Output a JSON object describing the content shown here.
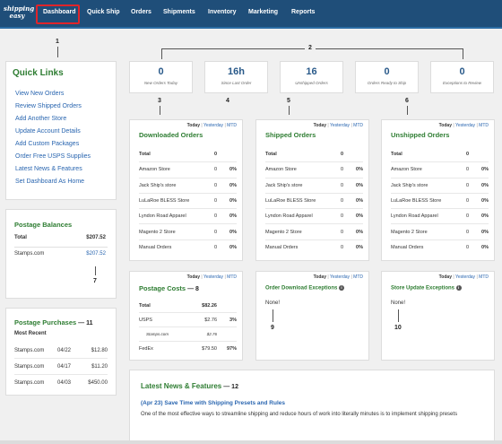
{
  "logo": {
    "line1": "shipping",
    "line2": "easy"
  },
  "nav": {
    "dashboard": "Dashboard",
    "quick_ship": "Quick Ship",
    "orders": "Orders",
    "shipments": "Shipments",
    "inventory": "Inventory",
    "marketing": "Marketing",
    "reports": "Reports"
  },
  "callouts": {
    "c1": "1",
    "c2": "2",
    "c3": "3",
    "c4": "4",
    "c5": "5",
    "c6": "6",
    "c7": "7",
    "c8": "8",
    "c9": "9",
    "c10": "10",
    "c11": "11",
    "c12": "12"
  },
  "quick_links": {
    "title": "Quick Links",
    "items": [
      "View New Orders",
      "Review Shipped Orders",
      "Add Another Store",
      "Update Account Details",
      "Add Custom Packages",
      "Order Free USPS Supplies",
      "Latest News & Features",
      "Set Dashboard As Home"
    ]
  },
  "postage_balances": {
    "title": "Postage Balances",
    "total_label": "Total",
    "total_value": "$207.52",
    "account": "Stamps.com",
    "account_value": "$207.52"
  },
  "postage_purchases": {
    "title": "Postage Purchases",
    "subtitle": "Most Recent",
    "rows": [
      {
        "vendor": "Stamps.com",
        "date": "04/22",
        "amount": "$12.80"
      },
      {
        "vendor": "Stamps.com",
        "date": "04/17",
        "amount": "$11.20"
      },
      {
        "vendor": "Stamps.com",
        "date": "04/03",
        "amount": "$450.00"
      }
    ]
  },
  "stats": [
    {
      "value": "0",
      "label": "New Orders Today"
    },
    {
      "value": "16h",
      "label": "Since Last Order"
    },
    {
      "value": "16",
      "label": "Unshipped Orders"
    },
    {
      "value": "0",
      "label": "Orders Ready to Ship"
    },
    {
      "value": "0",
      "label": "Exceptions to Review"
    }
  ],
  "tabs": {
    "today": "Today",
    "yesterday": "Yesterday",
    "mtd": "MTD",
    "sep": "|"
  },
  "downloaded": {
    "title": "Downloaded Orders",
    "total_label": "Total",
    "total_count": "0",
    "rows": [
      {
        "name": "Amazon Store",
        "count": "0",
        "pct": "0%"
      },
      {
        "name": "Jack Ship's store",
        "count": "0",
        "pct": "0%"
      },
      {
        "name": "LuLaRoe BLESS Store",
        "count": "0",
        "pct": "0%"
      },
      {
        "name": "Lyndon Road Apparel",
        "count": "0",
        "pct": "0%"
      },
      {
        "name": "Magento 2 Store",
        "count": "0",
        "pct": "0%"
      },
      {
        "name": "Manual Orders",
        "count": "0",
        "pct": "0%"
      }
    ]
  },
  "shipped": {
    "title": "Shipped Orders",
    "total_label": "Total",
    "total_count": "0",
    "rows": [
      {
        "name": "Amazon Store",
        "count": "0",
        "pct": "0%"
      },
      {
        "name": "Jack Ship's store",
        "count": "0",
        "pct": "0%"
      },
      {
        "name": "LuLaRoe BLESS Store",
        "count": "0",
        "pct": "0%"
      },
      {
        "name": "Lyndon Road Apparel",
        "count": "0",
        "pct": "0%"
      },
      {
        "name": "Magento 2 Store",
        "count": "0",
        "pct": "0%"
      },
      {
        "name": "Manual Orders",
        "count": "0",
        "pct": "0%"
      }
    ]
  },
  "unshipped": {
    "title": "Unshipped Orders",
    "total_label": "Total",
    "total_count": "0",
    "rows": [
      {
        "name": "Amazon Store",
        "count": "0",
        "pct": "0%"
      },
      {
        "name": "Jack Ship's store",
        "count": "0",
        "pct": "0%"
      },
      {
        "name": "LuLaRoe BLESS Store",
        "count": "0",
        "pct": "0%"
      },
      {
        "name": "Lyndon Road Apparel",
        "count": "0",
        "pct": "0%"
      },
      {
        "name": "Magento 2 Store",
        "count": "0",
        "pct": "0%"
      },
      {
        "name": "Manual Orders",
        "count": "0",
        "pct": "0%"
      }
    ]
  },
  "postage_costs": {
    "title": "Postage Costs",
    "total_label": "Total",
    "total_value": "$82.26",
    "usps_label": "USPS",
    "usps_value": "$2.76",
    "usps_pct": "3%",
    "stamps_label": "Stamps.com",
    "stamps_value": "$2.76",
    "fedex_label": "FedEx",
    "fedex_value": "$79.50",
    "fedex_pct": "97%"
  },
  "download_exceptions": {
    "title": "Order Download Exceptions",
    "info_icon": "info-icon",
    "body": "None!"
  },
  "store_exceptions": {
    "title": "Store Update Exceptions",
    "info_icon": "info-icon",
    "body": "None!"
  },
  "news": {
    "title": "Latest News & Features",
    "headline": "(Apr 23) Save Time with Shipping Presets and Rules",
    "body": "One of the most effective ways to streamline shipping and reduce hours of work into literally minutes is to implement shipping presets"
  }
}
